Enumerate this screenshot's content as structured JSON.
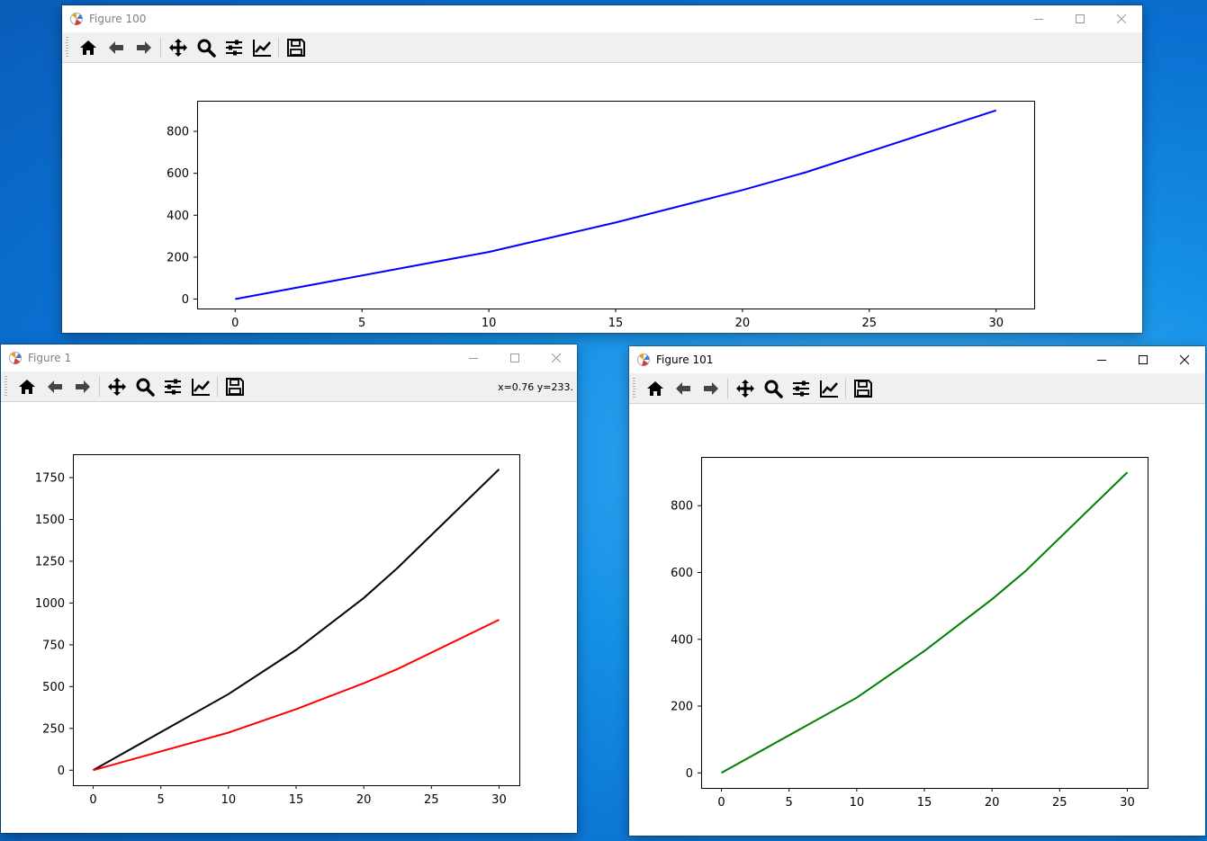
{
  "windows": {
    "fig100": {
      "title": "Figure 100",
      "chart_data": {
        "type": "line",
        "xlim": [
          -1.5,
          31.5
        ],
        "ylim": [
          -45,
          946
        ],
        "xticks": [
          0,
          5,
          10,
          15,
          20,
          25,
          30
        ],
        "yticks": [
          0,
          200,
          400,
          600,
          800
        ],
        "grid": false,
        "series": [
          {
            "color": "#0000ff",
            "x": [
              0,
              10,
              15,
              20,
              22.5,
              30
            ],
            "y": [
              0,
              225,
              365,
              520,
              605,
              900
            ]
          }
        ]
      }
    },
    "fig1": {
      "title": "Figure 1",
      "coord_readout": "x=0.76 y=233.",
      "chart_data": {
        "type": "line",
        "xlim": [
          -1.5,
          31.5
        ],
        "ylim": [
          -90,
          1890
        ],
        "xticks": [
          0,
          5,
          10,
          15,
          20,
          25,
          30
        ],
        "yticks": [
          0,
          250,
          500,
          750,
          1000,
          1250,
          1500,
          1750
        ],
        "grid": false,
        "series": [
          {
            "color": "#000000",
            "x": [
              0,
              10,
              15,
              20,
              22.5,
              30
            ],
            "y": [
              0,
              455,
              720,
              1030,
              1210,
              1800
            ]
          },
          {
            "color": "#ff0000",
            "x": [
              0,
              10,
              15,
              20,
              22.5,
              30
            ],
            "y": [
              0,
              225,
              365,
              520,
              605,
              900
            ]
          }
        ]
      }
    },
    "fig101": {
      "title": "Figure 101",
      "chart_data": {
        "type": "line",
        "xlim": [
          -1.5,
          31.5
        ],
        "ylim": [
          -45,
          946
        ],
        "xticks": [
          0,
          5,
          10,
          15,
          20,
          25,
          30
        ],
        "yticks": [
          0,
          200,
          400,
          600,
          800
        ],
        "grid": false,
        "series": [
          {
            "color": "#008000",
            "x": [
              0,
              10,
              15,
              20,
              22.5,
              30
            ],
            "y": [
              0,
              225,
              365,
              520,
              605,
              900
            ]
          }
        ]
      }
    }
  },
  "toolbar_icons": [
    "home-icon",
    "back-arrow-icon",
    "forward-arrow-icon",
    "pan-move-icon",
    "zoom-magnifier-icon",
    "configure-subplots-icon",
    "edit-axis-icon",
    "save-floppy-icon"
  ],
  "colors": {
    "desktop": "#1590e6",
    "toolbar": "#f0f0f0"
  }
}
